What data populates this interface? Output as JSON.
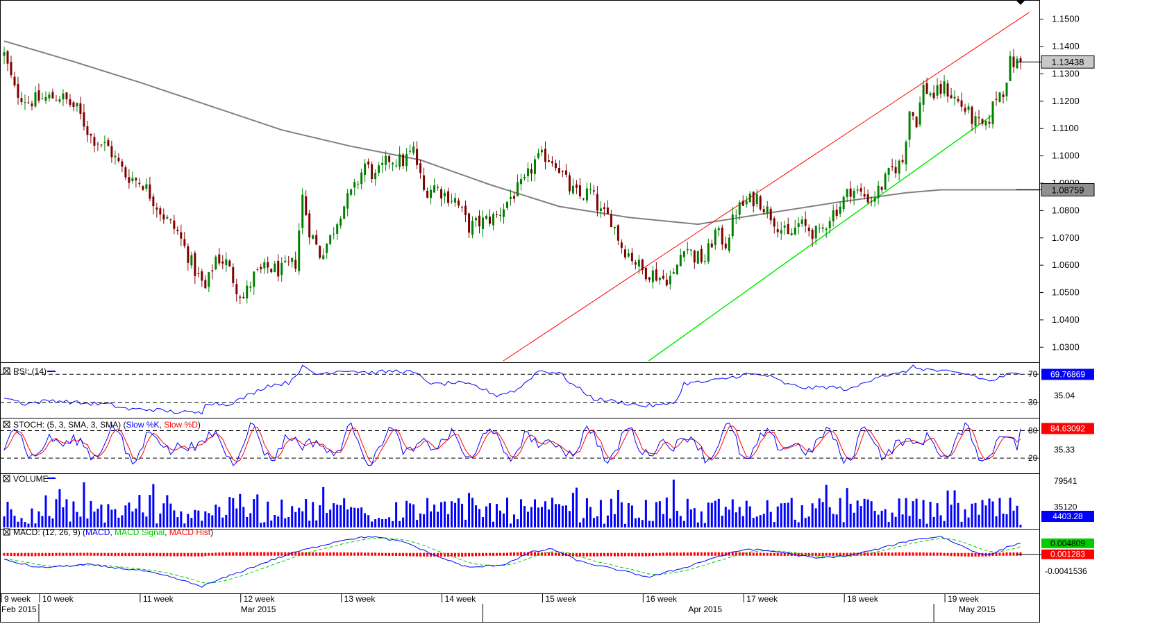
{
  "colors": {
    "bull": "#008000",
    "bear": "#800000",
    "ma": "#808080",
    "channel_upper": "#ff0000",
    "channel_lower": "#00ee00",
    "rsi": "#0000ff",
    "stoch_k": "#0000ff",
    "stoch_d": "#ff0000",
    "volume": "#0000ff",
    "macd": "#0000ff",
    "macd_signal": "#00cc00",
    "macd_hist": "#ff0000",
    "axis": "#000000",
    "guide": "#000000"
  },
  "chart_data": {
    "type": "candlestick",
    "instrument": "",
    "timeframe": "daily",
    "price": {
      "ylim": [
        1.025,
        1.155
      ],
      "ticks": [
        "1.1500",
        "1.1400",
        "1.1300",
        "1.1200",
        "1.1100",
        "1.1000",
        "1.0900",
        "1.0800",
        "1.0700",
        "1.0600",
        "1.0500",
        "1.0400",
        "1.0300"
      ],
      "tick_values": [
        1.15,
        1.14,
        1.13,
        1.12,
        1.11,
        1.1,
        1.09,
        1.08,
        1.07,
        1.06,
        1.05,
        1.04,
        1.03
      ],
      "last_price_label": "1.13438",
      "last_price": 1.13438,
      "ma_label": "1.08759",
      "ma_last": 1.08759,
      "ma_points": [
        [
          0,
          1.142
        ],
        [
          20,
          1.1345
        ],
        [
          40,
          1.1265
        ],
        [
          60,
          1.118
        ],
        [
          80,
          1.1095
        ],
        [
          100,
          1.1035
        ],
        [
          120,
          1.0985
        ],
        [
          140,
          1.0895
        ],
        [
          160,
          1.0815
        ],
        [
          180,
          1.0775
        ],
        [
          200,
          1.075
        ],
        [
          220,
          1.079
        ],
        [
          240,
          1.083
        ],
        [
          260,
          1.0865
        ],
        [
          270,
          1.0876
        ],
        [
          280,
          1.08759
        ]
      ],
      "upper_channel": [
        [
          143.9,
          1.025
        ],
        [
          295.5,
          1.1525
        ]
      ],
      "lower_channel": [
        [
          185.8,
          1.025
        ],
        [
          285,
          1.115
        ]
      ],
      "candle_anchors": [
        [
          0,
          1.137
        ],
        [
          3,
          1.124
        ],
        [
          7,
          1.12
        ],
        [
          12,
          1.121
        ],
        [
          16,
          1.122
        ],
        [
          21,
          1.117
        ],
        [
          25,
          1.107
        ],
        [
          30,
          1.103
        ],
        [
          35,
          1.093
        ],
        [
          40,
          1.09
        ],
        [
          46,
          1.078
        ],
        [
          50,
          1.072
        ],
        [
          55,
          1.058
        ],
        [
          58,
          1.051
        ],
        [
          61,
          1.063
        ],
        [
          64,
          1.061
        ],
        [
          67,
          1.052
        ],
        [
          69,
          1.048
        ],
        [
          72,
          1.056
        ],
        [
          76,
          1.059
        ],
        [
          80,
          1.058
        ],
        [
          84,
          1.061
        ],
        [
          86,
          1.085
        ],
        [
          88,
          1.073
        ],
        [
          91,
          1.064
        ],
        [
          94,
          1.07
        ],
        [
          97,
          1.08
        ],
        [
          101,
          1.088
        ],
        [
          104,
          1.097
        ],
        [
          107,
          1.092
        ],
        [
          111,
          1.099
        ],
        [
          115,
          1.098
        ],
        [
          118,
          1.102
        ],
        [
          121,
          1.087
        ],
        [
          124,
          1.089
        ],
        [
          127,
          1.086
        ],
        [
          130,
          1.084
        ],
        [
          134,
          1.074
        ],
        [
          138,
          1.076
        ],
        [
          142,
          1.078
        ],
        [
          146,
          1.085
        ],
        [
          150,
          1.09
        ],
        [
          153,
          1.098
        ],
        [
          156,
          1.1
        ],
        [
          159,
          1.098
        ],
        [
          163,
          1.088
        ],
        [
          166,
          1.085
        ],
        [
          169,
          1.087
        ],
        [
          172,
          1.079
        ],
        [
          175,
          1.077
        ],
        [
          178,
          1.067
        ],
        [
          181,
          1.063
        ],
        [
          184,
          1.058
        ],
        [
          187,
          1.057
        ],
        [
          190,
          1.055
        ],
        [
          193,
          1.056
        ],
        [
          196,
          1.068
        ],
        [
          199,
          1.063
        ],
        [
          202,
          1.062
        ],
        [
          205,
          1.072
        ],
        [
          208,
          1.068
        ],
        [
          211,
          1.08
        ],
        [
          214,
          1.083
        ],
        [
          217,
          1.085
        ],
        [
          220,
          1.08
        ],
        [
          223,
          1.075
        ],
        [
          226,
          1.07
        ],
        [
          229,
          1.075
        ],
        [
          232,
          1.073
        ],
        [
          235,
          1.071
        ],
        [
          238,
          1.078
        ],
        [
          241,
          1.082
        ],
        [
          244,
          1.088
        ],
        [
          247,
          1.086
        ],
        [
          250,
          1.084
        ],
        [
          253,
          1.089
        ],
        [
          256,
          1.095
        ],
        [
          259,
          1.098
        ],
        [
          261,
          1.117
        ],
        [
          263,
          1.113
        ],
        [
          265,
          1.125
        ],
        [
          268,
          1.122
        ],
        [
          271,
          1.125
        ],
        [
          274,
          1.121
        ],
        [
          277,
          1.117
        ],
        [
          280,
          1.112
        ],
        [
          283,
          1.11
        ],
        [
          286,
          1.122
        ],
        [
          288,
          1.124
        ],
        [
          290,
          1.134
        ],
        [
          293,
          1.134
        ]
      ],
      "num_candles": 294
    },
    "x_axis": {
      "week_labels": [
        {
          "label": "9 week",
          "idx": 0
        },
        {
          "label": "10 week",
          "idx": 11
        },
        {
          "label": "11 week",
          "idx": 40
        },
        {
          "label": "12 week",
          "idx": 69
        },
        {
          "label": "13 week",
          "idx": 98
        },
        {
          "label": "14 week",
          "idx": 127
        },
        {
          "label": "15 week",
          "idx": 156
        },
        {
          "label": "16 week",
          "idx": 185
        },
        {
          "label": "17 week",
          "idx": 214
        },
        {
          "label": "18 week",
          "idx": 243
        },
        {
          "label": "19 week",
          "idx": 272
        }
      ],
      "month_labels": [
        {
          "label": "Feb 2015",
          "idx": 0
        },
        {
          "label": "Mar 2015",
          "idx": 69
        },
        {
          "label": "Apr 2015",
          "idx": 198
        },
        {
          "label": "May 2015",
          "idx": 276
        }
      ],
      "month_separators": [
        10,
        138,
        268
      ]
    },
    "rsi": {
      "title": "RSI: (14)",
      "ylim": [
        10,
        85
      ],
      "levels": [
        70,
        30
      ],
      "level_labels": [
        "70",
        "30"
      ],
      "value_label": "35.04",
      "last_label": "69.76869",
      "last": 69.76869,
      "anchors": [
        [
          0,
          38
        ],
        [
          6,
          28
        ],
        [
          14,
          33
        ],
        [
          22,
          29
        ],
        [
          30,
          27
        ],
        [
          36,
          20
        ],
        [
          42,
          20
        ],
        [
          50,
          16
        ],
        [
          57,
          15
        ],
        [
          58,
          30
        ],
        [
          64,
          27
        ],
        [
          68,
          34
        ],
        [
          76,
          54
        ],
        [
          82,
          58
        ],
        [
          86,
          80
        ],
        [
          90,
          70
        ],
        [
          98,
          76
        ],
        [
          106,
          72
        ],
        [
          114,
          75
        ],
        [
          118,
          72
        ],
        [
          124,
          55
        ],
        [
          130,
          58
        ],
        [
          136,
          53
        ],
        [
          142,
          40
        ],
        [
          148,
          48
        ],
        [
          154,
          75
        ],
        [
          160,
          72
        ],
        [
          164,
          55
        ],
        [
          170,
          35
        ],
        [
          178,
          30
        ],
        [
          184,
          25
        ],
        [
          190,
          26
        ],
        [
          194,
          33
        ],
        [
          196,
          57
        ],
        [
          202,
          59
        ],
        [
          206,
          62
        ],
        [
          214,
          70
        ],
        [
          220,
          68
        ],
        [
          226,
          55
        ],
        [
          232,
          50
        ],
        [
          238,
          52
        ],
        [
          244,
          48
        ],
        [
          252,
          68
        ],
        [
          258,
          70
        ],
        [
          262,
          80
        ],
        [
          270,
          74
        ],
        [
          278,
          70
        ],
        [
          284,
          60
        ],
        [
          290,
          70
        ],
        [
          294,
          70
        ]
      ]
    },
    "stoch": {
      "title": "STOCH: (5, 3, SMA, 3, SMA)",
      "legend": [
        "Slow %K",
        "Slow %D"
      ],
      "ylim": [
        -10,
        105
      ],
      "levels": [
        80,
        20
      ],
      "level_labels": [
        "80",
        "20"
      ],
      "value_label": "35.33",
      "last_label": "84.63092",
      "last": 84.63092
    },
    "volume": {
      "title": "VOLUME",
      "ylim": [
        0,
        90000
      ],
      "ticks": [
        "79541",
        "35120"
      ],
      "tick_values": [
        79541,
        35120
      ],
      "last_label": "4403.28",
      "last": 4403.28
    },
    "macd": {
      "title": "MACD: (12, 26, 9)",
      "legend": [
        "MACD",
        "MACD Signal",
        "MACD Hist"
      ],
      "ylim": [
        -0.011,
        0.009
      ],
      "ticks": [
        "0.004809",
        "0.001283",
        "-0.0041536"
      ],
      "tick_values": [
        0.004809,
        0.001283,
        -0.0041536
      ],
      "anchors": [
        [
          0,
          -0.0005
        ],
        [
          10,
          -0.003
        ],
        [
          24,
          -0.002
        ],
        [
          40,
          -0.004
        ],
        [
          48,
          -0.006
        ],
        [
          57,
          -0.009
        ],
        [
          64,
          -0.006
        ],
        [
          76,
          -0.001
        ],
        [
          84,
          0.002
        ],
        [
          98,
          0.006
        ],
        [
          106,
          0.007
        ],
        [
          116,
          0.005
        ],
        [
          124,
          0.001
        ],
        [
          134,
          -0.003
        ],
        [
          144,
          -0.002
        ],
        [
          152,
          0.002
        ],
        [
          158,
          0.003
        ],
        [
          166,
          -0.001
        ],
        [
          178,
          -0.004
        ],
        [
          186,
          -0.006
        ],
        [
          196,
          -0.003
        ],
        [
          204,
          0
        ],
        [
          214,
          0.003
        ],
        [
          224,
          0.002
        ],
        [
          234,
          0
        ],
        [
          244,
          0.001
        ],
        [
          252,
          0.003
        ],
        [
          262,
          0.006
        ],
        [
          270,
          0.007
        ],
        [
          280,
          0.002
        ],
        [
          284,
          0.001
        ],
        [
          290,
          0.004
        ],
        [
          294,
          0.005
        ]
      ]
    }
  }
}
